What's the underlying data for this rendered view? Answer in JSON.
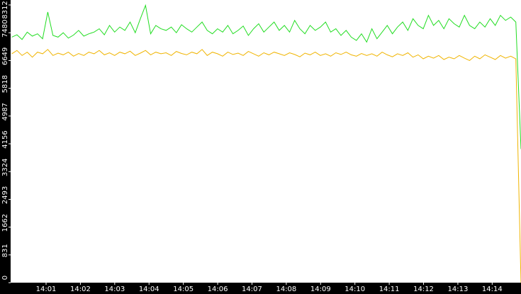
{
  "chart_data": {
    "type": "line",
    "xlim": [
      0,
      14.84
    ],
    "xticks": [
      {
        "value": 1,
        "label": "14:01"
      },
      {
        "value": 2,
        "label": "14:02"
      },
      {
        "value": 3,
        "label": "14:03"
      },
      {
        "value": 4,
        "label": "14:04"
      },
      {
        "value": 5,
        "label": "14:05"
      },
      {
        "value": 6,
        "label": "14:06"
      },
      {
        "value": 7,
        "label": "14:07"
      },
      {
        "value": 8,
        "label": "14:08"
      },
      {
        "value": 9,
        "label": "14:09"
      },
      {
        "value": 10,
        "label": "14:10"
      },
      {
        "value": 11,
        "label": "14:11"
      },
      {
        "value": 12,
        "label": "14:12"
      },
      {
        "value": 13,
        "label": "14:13"
      },
      {
        "value": 14,
        "label": "14:14"
      }
    ],
    "ylim": [
      0,
      8312
    ],
    "yticks": [
      0,
      831,
      1662,
      2493,
      3324,
      4156,
      4987,
      5818,
      6649,
      7480,
      8312
    ],
    "series": [
      {
        "color": "#22dd22",
        "values": [
          7350,
          7420,
          7280,
          7500,
          7380,
          7450,
          7300,
          8100,
          7400,
          7350,
          7480,
          7320,
          7410,
          7550,
          7380,
          7450,
          7500,
          7600,
          7420,
          7700,
          7500,
          7650,
          7550,
          7800,
          7480,
          7900,
          8300,
          7450,
          7700,
          7600,
          7550,
          7650,
          7480,
          7720,
          7600,
          7500,
          7650,
          7800,
          7550,
          7450,
          7600,
          7500,
          7700,
          7450,
          7550,
          7680,
          7400,
          7600,
          7750,
          7500,
          7650,
          7800,
          7550,
          7700,
          7500,
          7850,
          7600,
          7450,
          7700,
          7550,
          7650,
          7800,
          7500,
          7600,
          7400,
          7550,
          7350,
          7250,
          7450,
          7200,
          7600,
          7300,
          7500,
          7700,
          7450,
          7650,
          7800,
          7550,
          7900,
          7700,
          7600,
          8000,
          7700,
          7850,
          7600,
          7900,
          7750,
          7650,
          8000,
          7700,
          7600,
          7800,
          7650,
          7900,
          7700,
          8000,
          7850,
          7950,
          7800,
          4000
        ]
      },
      {
        "color": "#f0b400",
        "values": [
          6850,
          6950,
          6800,
          6900,
          6750,
          6900,
          6850,
          6980,
          6800,
          6870,
          6820,
          6900,
          6780,
          6860,
          6800,
          6900,
          6850,
          6950,
          6820,
          6880,
          6800,
          6900,
          6850,
          6930,
          6800,
          6870,
          6950,
          6820,
          6900,
          6850,
          6880,
          6800,
          6920,
          6860,
          6820,
          6900,
          6850,
          6980,
          6800,
          6900,
          6850,
          6780,
          6900,
          6830,
          6870,
          6800,
          6920,
          6850,
          6780,
          6880,
          6820,
          6900,
          6850,
          6800,
          6880,
          6830,
          6760,
          6870,
          6820,
          6900,
          6800,
          6850,
          6780,
          6880,
          6830,
          6900,
          6820,
          6780,
          6860,
          6800,
          6850,
          6780,
          6900,
          6820,
          6760,
          6850,
          6800,
          6880,
          6750,
          6820,
          6700,
          6780,
          6720,
          6800,
          6680,
          6750,
          6700,
          6800,
          6720,
          6650,
          6780,
          6700,
          6820,
          6750,
          6680,
          6800,
          6720,
          6780,
          6700,
          0
        ]
      }
    ]
  }
}
